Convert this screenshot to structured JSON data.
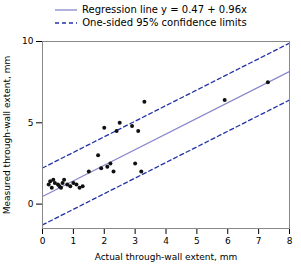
{
  "chart_data": {
    "type": "scatter",
    "x": [
      0.2,
      0.25,
      0.3,
      0.35,
      0.4,
      0.5,
      0.55,
      0.6,
      0.65,
      0.7,
      0.8,
      0.9,
      1.0,
      1.1,
      1.2,
      1.3,
      1.5,
      1.8,
      1.9,
      2.0,
      2.1,
      2.2,
      2.3,
      2.4,
      2.5,
      2.9,
      3.0,
      3.1,
      3.2,
      3.3,
      5.9,
      7.3
    ],
    "values": [
      1.2,
      1.4,
      1.0,
      1.5,
      1.3,
      1.2,
      1.1,
      1.0,
      1.3,
      1.5,
      1.2,
      1.1,
      1.3,
      1.2,
      1.0,
      1.1,
      2.0,
      3.0,
      2.2,
      4.7,
      2.3,
      2.5,
      2.0,
      4.5,
      5.0,
      4.8,
      2.5,
      4.5,
      2.0,
      6.3,
      6.4,
      7.5
    ],
    "color": "#111111",
    "xlabel": "Actual through-wall extent, mm",
    "ylabel": "Measured through-wall extent, mm",
    "xlim": [
      0,
      8
    ],
    "ylim": [
      -1.5,
      10
    ],
    "xticks": [
      0,
      1,
      2,
      3,
      4,
      5,
      6,
      7,
      8
    ],
    "yticks": [
      0,
      5,
      10
    ],
    "grid": false,
    "legend": "top",
    "series": [
      {
        "name": "Regression line y = 0.47 + 0.96x",
        "type": "line",
        "color": "#8888cc",
        "line_style": "solid",
        "x": [
          0,
          8
        ],
        "values": [
          0.47,
          8.15
        ]
      },
      {
        "name": "One-sided 95% confidence limits",
        "type": "line",
        "color": "#2233aa",
        "line_style": "dashed",
        "x": [
          0,
          8
        ],
        "upper": [
          2.22,
          9.9
        ],
        "lower": [
          -1.28,
          6.4
        ]
      }
    ]
  }
}
